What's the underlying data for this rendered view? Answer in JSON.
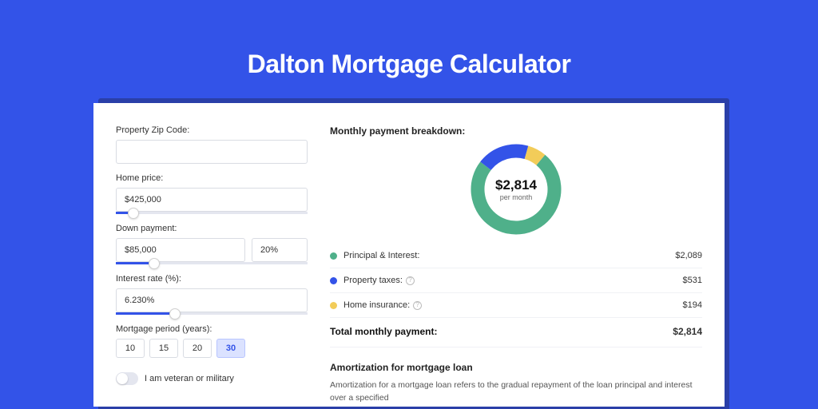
{
  "page": {
    "title": "Dalton Mortgage Calculator",
    "bg_color": "#3353e8",
    "shadow_color": "#2a3fa8",
    "card_bg": "#ffffff"
  },
  "form": {
    "zip": {
      "label": "Property Zip Code:",
      "value": ""
    },
    "price": {
      "label": "Home price:",
      "value": "$425,000",
      "slider_fill_pct": 9,
      "slider_thumb_pct": 9
    },
    "down": {
      "label": "Down payment:",
      "value": "$85,000",
      "pct_value": "20%",
      "slider_fill_pct": 20,
      "slider_thumb_pct": 20
    },
    "rate": {
      "label": "Interest rate (%):",
      "value": "6.230%",
      "slider_fill_pct": 31,
      "slider_thumb_pct": 31
    },
    "period": {
      "label": "Mortgage period (years):",
      "options": [
        "10",
        "15",
        "20",
        "30"
      ],
      "active_index": 3
    },
    "veteran": {
      "label": "I am veteran or military",
      "on": false
    }
  },
  "breakdown": {
    "title": "Monthly payment breakdown:",
    "donut": {
      "amount": "$2,814",
      "sub": "per month",
      "stroke_width": 17,
      "radius": 48,
      "segments": [
        {
          "key": "pi",
          "color": "#4fb08a",
          "pct": 74.2
        },
        {
          "key": "tax",
          "color": "#3353e8",
          "pct": 18.9
        },
        {
          "key": "ins",
          "color": "#f2cc59",
          "pct": 6.9
        }
      ]
    },
    "items": [
      {
        "label": "Principal & Interest:",
        "value": "$2,089",
        "color": "#4fb08a",
        "help": false
      },
      {
        "label": "Property taxes:",
        "value": "$531",
        "color": "#3353e8",
        "help": true
      },
      {
        "label": "Home insurance:",
        "value": "$194",
        "color": "#f2cc59",
        "help": true
      }
    ],
    "total": {
      "label": "Total monthly payment:",
      "value": "$2,814"
    }
  },
  "amortization": {
    "title": "Amortization for mortgage loan",
    "text": "Amortization for a mortgage loan refers to the gradual repayment of the loan principal and interest over a specified"
  }
}
